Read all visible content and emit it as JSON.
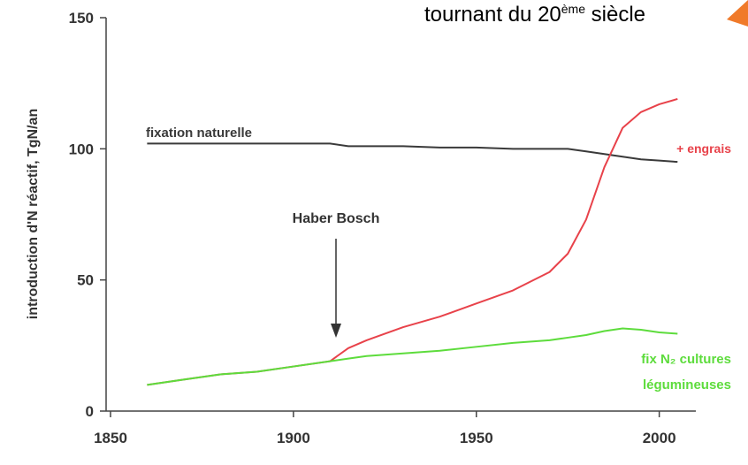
{
  "chart_data": {
    "type": "line",
    "title": [
      "tournant du 20",
      "ème",
      " siècle"
    ],
    "y_label": "introduction d'N réactif, TgN/an",
    "annotations": [
      "fixation naturelle",
      "+ engrais",
      "Haber Bosch",
      "fix N₂ cultures",
      "légumineuses"
    ],
    "x": [
      1860,
      1870,
      1880,
      1890,
      1900,
      1910,
      1915,
      1920,
      1930,
      1940,
      1950,
      1960,
      1970,
      1975,
      1980,
      1985,
      1990,
      1995,
      2000,
      2005
    ],
    "series": [
      {
        "color": "#3a3a3a",
        "values": [
          102,
          102,
          102,
          102,
          102,
          102,
          101,
          101,
          101,
          100.5,
          100.5,
          100,
          100,
          100,
          99,
          98,
          97,
          96,
          95.5,
          95
        ]
      },
      {
        "color": "#e8424a",
        "values": [
          10,
          12,
          14,
          15,
          17,
          19,
          24,
          27,
          32,
          36,
          41,
          46,
          53,
          60,
          73,
          93,
          108,
          114,
          117,
          119
        ]
      },
      {
        "color": "#5ddc3c",
        "values": [
          10,
          12,
          14,
          15,
          17,
          19,
          20,
          21,
          22,
          23,
          24.5,
          26,
          27,
          28,
          29,
          30.5,
          31.5,
          31,
          30,
          29.5
        ]
      }
    ],
    "xlim": [
      1850,
      2010
    ],
    "ylim": [
      0,
      150
    ],
    "xticks": [
      1850,
      1900,
      1950,
      2000
    ],
    "yticks": [
      0,
      50,
      100,
      150
    ]
  }
}
